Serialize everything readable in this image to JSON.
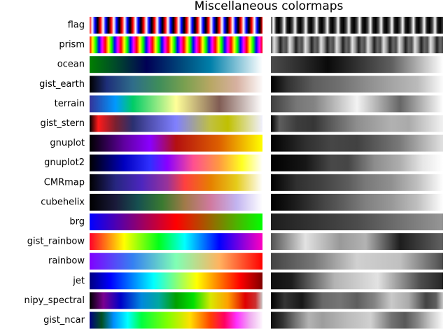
{
  "chart_data": {
    "type": "colormap",
    "title": "Miscellaneous colormaps",
    "categories": [
      "flag",
      "prism",
      "ocean",
      "gist_earth",
      "terrain",
      "gist_stern",
      "gnuplot",
      "gnuplot2",
      "CMRmap",
      "cubehelix",
      "brg",
      "gist_rainbow",
      "rainbow",
      "jet",
      "nipy_spectral",
      "gist_ncar"
    ],
    "repeat": [
      16,
      11,
      1,
      1,
      1,
      1,
      1,
      1,
      1,
      1,
      1,
      1,
      1,
      1,
      1,
      1
    ],
    "stops": [
      [
        [
          0,
          "#ff0000"
        ],
        [
          0.25,
          "#ffffff"
        ],
        [
          0.5,
          "#0000ff"
        ],
        [
          0.75,
          "#000000"
        ],
        [
          1,
          "#ff0000"
        ]
      ],
      [
        [
          0,
          "#ff0000"
        ],
        [
          0.2,
          "#ffff00"
        ],
        [
          0.4,
          "#00ff00"
        ],
        [
          0.6,
          "#0000ff"
        ],
        [
          0.8,
          "#ff00ff"
        ],
        [
          1,
          "#ff0000"
        ]
      ],
      [
        [
          0,
          "#007f00"
        ],
        [
          0.15,
          "#004a2a"
        ],
        [
          0.33,
          "#000055"
        ],
        [
          0.55,
          "#004f7f"
        ],
        [
          0.7,
          "#0080aa"
        ],
        [
          0.85,
          "#80c0d5"
        ],
        [
          1,
          "#ffffff"
        ]
      ],
      [
        [
          0,
          "#000000"
        ],
        [
          0.1,
          "#1e2f7a"
        ],
        [
          0.25,
          "#2f6d8a"
        ],
        [
          0.4,
          "#3e8d5a"
        ],
        [
          0.55,
          "#7aa050"
        ],
        [
          0.7,
          "#b8a764"
        ],
        [
          0.85,
          "#d6b0a0"
        ],
        [
          1,
          "#fdfbfb"
        ]
      ],
      [
        [
          0,
          "#333399"
        ],
        [
          0.15,
          "#0099ff"
        ],
        [
          0.25,
          "#00cc66"
        ],
        [
          0.5,
          "#ffff99"
        ],
        [
          0.75,
          "#805c54"
        ],
        [
          1,
          "#ffffff"
        ]
      ],
      [
        [
          0,
          "#000000"
        ],
        [
          0.05,
          "#ff1a1a"
        ],
        [
          0.15,
          "#7a2030"
        ],
        [
          0.25,
          "#2a3070"
        ],
        [
          0.35,
          "#5050b0"
        ],
        [
          0.5,
          "#8080ff"
        ],
        [
          0.7,
          "#c0c040"
        ],
        [
          0.8,
          "#c0c000"
        ],
        [
          1,
          "#f0f0ff"
        ]
      ],
      [
        [
          0,
          "#000000"
        ],
        [
          0.2,
          "#6000a0"
        ],
        [
          0.35,
          "#8a00ff"
        ],
        [
          0.5,
          "#b41010"
        ],
        [
          0.75,
          "#dd6000"
        ],
        [
          1,
          "#ffff00"
        ]
      ],
      [
        [
          0,
          "#000000"
        ],
        [
          0.2,
          "#0000c0"
        ],
        [
          0.35,
          "#3030ff"
        ],
        [
          0.45,
          "#8a00ff"
        ],
        [
          0.6,
          "#ff5090"
        ],
        [
          0.75,
          "#ff9a40"
        ],
        [
          0.88,
          "#ffff20"
        ],
        [
          1,
          "#ffffff"
        ]
      ],
      [
        [
          0,
          "#000000"
        ],
        [
          0.15,
          "#262680"
        ],
        [
          0.3,
          "#4c26bf"
        ],
        [
          0.45,
          "#993399"
        ],
        [
          0.55,
          "#ff4040"
        ],
        [
          0.7,
          "#e68000"
        ],
        [
          0.85,
          "#e5cc1a"
        ],
        [
          1,
          "#ffffff"
        ]
      ],
      [
        [
          0,
          "#000000"
        ],
        [
          0.15,
          "#1a1a3a"
        ],
        [
          0.28,
          "#165050"
        ],
        [
          0.42,
          "#3a7a30"
        ],
        [
          0.55,
          "#a07a48"
        ],
        [
          0.7,
          "#d07aa0"
        ],
        [
          0.85,
          "#c2b4f0"
        ],
        [
          1,
          "#ffffff"
        ]
      ],
      [
        [
          0,
          "#0000ff"
        ],
        [
          0.5,
          "#ff0000"
        ],
        [
          1,
          "#00ff00"
        ]
      ],
      [
        [
          0,
          "#ff0029"
        ],
        [
          0.2,
          "#ffff00"
        ],
        [
          0.4,
          "#00ff1a"
        ],
        [
          0.55,
          "#00ffff"
        ],
        [
          0.75,
          "#0000ff"
        ],
        [
          1,
          "#ff00bf"
        ]
      ],
      [
        [
          0,
          "#8000ff"
        ],
        [
          0.25,
          "#3580f2"
        ],
        [
          0.5,
          "#80ffb4"
        ],
        [
          0.75,
          "#ffb360"
        ],
        [
          1,
          "#ff0000"
        ]
      ],
      [
        [
          0,
          "#000080"
        ],
        [
          0.12,
          "#0000ff"
        ],
        [
          0.37,
          "#00ffff"
        ],
        [
          0.62,
          "#ffff00"
        ],
        [
          0.87,
          "#ff0000"
        ],
        [
          1,
          "#800000"
        ]
      ],
      [
        [
          0,
          "#000000"
        ],
        [
          0.08,
          "#7a0090"
        ],
        [
          0.18,
          "#0000c8"
        ],
        [
          0.3,
          "#0088dd"
        ],
        [
          0.4,
          "#00a8a0"
        ],
        [
          0.5,
          "#00a000"
        ],
        [
          0.6,
          "#00e000"
        ],
        [
          0.7,
          "#d8e800"
        ],
        [
          0.8,
          "#ffa000"
        ],
        [
          0.9,
          "#e00000"
        ],
        [
          0.96,
          "#cc3030"
        ],
        [
          1,
          "#cccccc"
        ]
      ],
      [
        [
          0,
          "#000080"
        ],
        [
          0.07,
          "#005020"
        ],
        [
          0.14,
          "#0090ff"
        ],
        [
          0.22,
          "#00ffff"
        ],
        [
          0.3,
          "#00ff40"
        ],
        [
          0.45,
          "#80ff00"
        ],
        [
          0.58,
          "#ffe000"
        ],
        [
          0.7,
          "#ff4000"
        ],
        [
          0.78,
          "#ff0060"
        ],
        [
          0.85,
          "#ff30ff"
        ],
        [
          0.93,
          "#f0b0f0"
        ],
        [
          1,
          "#fef8fe"
        ]
      ]
    ]
  }
}
